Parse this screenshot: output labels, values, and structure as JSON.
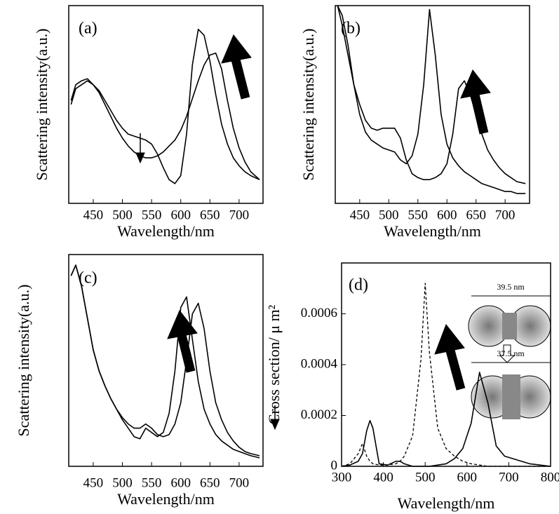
{
  "chart_data": [
    {
      "type": "line",
      "label": "(a)",
      "x_label": "Wavelength/nm",
      "y_label": "Scattering intensity(a.u.)",
      "x": [
        412,
        420,
        430,
        440,
        450,
        460,
        470,
        480,
        490,
        500,
        510,
        520,
        530,
        540,
        550,
        560,
        570,
        580,
        590,
        600,
        610,
        620,
        630,
        640,
        650,
        660,
        670,
        680,
        690,
        700,
        710,
        720,
        735
      ],
      "series": [
        {
          "color": "#000000",
          "style": "solid",
          "values": [
            0.5,
            0.58,
            0.6,
            0.62,
            0.6,
            0.57,
            0.52,
            0.47,
            0.42,
            0.38,
            0.35,
            0.34,
            0.33,
            0.32,
            0.3,
            0.25,
            0.18,
            0.12,
            0.1,
            0.14,
            0.35,
            0.7,
            0.88,
            0.85,
            0.72,
            0.55,
            0.4,
            0.3,
            0.23,
            0.19,
            0.16,
            0.14,
            0.12
          ]
        },
        {
          "color": "#000000",
          "style": "solid",
          "values": [
            0.52,
            0.6,
            0.62,
            0.63,
            0.6,
            0.56,
            0.5,
            0.44,
            0.38,
            0.33,
            0.29,
            0.26,
            0.24,
            0.23,
            0.23,
            0.24,
            0.26,
            0.29,
            0.32,
            0.37,
            0.44,
            0.53,
            0.62,
            0.7,
            0.75,
            0.76,
            0.68,
            0.52,
            0.38,
            0.28,
            0.21,
            0.16,
            0.12
          ]
        }
      ],
      "xlim": [
        408,
        741
      ],
      "xticks": [
        450,
        500,
        550,
        600,
        650,
        700
      ],
      "ylim": [
        0,
        1
      ]
    },
    {
      "type": "line",
      "label": "(b)",
      "x_label": "Wavelength/nm",
      "y_label": "Scattering intensity(a.u.)",
      "x": [
        412,
        420,
        430,
        440,
        450,
        460,
        470,
        480,
        490,
        500,
        510,
        520,
        530,
        540,
        550,
        560,
        570,
        580,
        590,
        600,
        610,
        620,
        630,
        640,
        650,
        660,
        670,
        680,
        690,
        700,
        710,
        720,
        735
      ],
      "series": [
        {
          "color": "#000000",
          "style": "solid",
          "values": [
            1.0,
            0.95,
            0.8,
            0.6,
            0.45,
            0.36,
            0.32,
            0.3,
            0.28,
            0.27,
            0.26,
            0.22,
            0.2,
            0.24,
            0.35,
            0.6,
            0.98,
            0.75,
            0.45,
            0.3,
            0.23,
            0.19,
            0.16,
            0.14,
            0.12,
            0.1,
            0.09,
            0.08,
            0.07,
            0.06,
            0.06,
            0.05,
            0.05
          ]
        },
        {
          "color": "#000000",
          "style": "solid",
          "values": [
            1.0,
            0.9,
            0.75,
            0.6,
            0.5,
            0.42,
            0.38,
            0.37,
            0.38,
            0.38,
            0.38,
            0.33,
            0.22,
            0.15,
            0.13,
            0.12,
            0.12,
            0.13,
            0.15,
            0.2,
            0.35,
            0.58,
            0.62,
            0.55,
            0.45,
            0.35,
            0.27,
            0.22,
            0.18,
            0.15,
            0.13,
            0.11,
            0.1
          ]
        }
      ],
      "xlim": [
        408,
        742
      ],
      "xticks": [
        450,
        500,
        550,
        600,
        650,
        700
      ],
      "ylim": [
        0,
        1
      ]
    },
    {
      "type": "line",
      "label": "(c)",
      "x_label": "Wavelength/nm",
      "y_label": "Scattering intensity(a.u.)",
      "x": [
        412,
        420,
        430,
        440,
        450,
        460,
        470,
        480,
        490,
        500,
        510,
        520,
        530,
        540,
        550,
        560,
        570,
        580,
        590,
        600,
        610,
        620,
        630,
        640,
        650,
        660,
        670,
        680,
        690,
        700,
        710,
        720,
        735
      ],
      "series": [
        {
          "color": "#000000",
          "style": "solid",
          "values": [
            0.9,
            0.95,
            0.85,
            0.7,
            0.55,
            0.45,
            0.38,
            0.32,
            0.27,
            0.22,
            0.18,
            0.14,
            0.13,
            0.18,
            0.16,
            0.14,
            0.16,
            0.25,
            0.45,
            0.75,
            0.8,
            0.6,
            0.4,
            0.27,
            0.2,
            0.15,
            0.12,
            0.1,
            0.08,
            0.07,
            0.06,
            0.05,
            0.04
          ]
        },
        {
          "color": "#000000",
          "style": "solid",
          "values": [
            0.9,
            0.95,
            0.85,
            0.7,
            0.55,
            0.45,
            0.38,
            0.32,
            0.27,
            0.23,
            0.2,
            0.18,
            0.18,
            0.2,
            0.18,
            0.15,
            0.14,
            0.15,
            0.2,
            0.3,
            0.5,
            0.72,
            0.77,
            0.65,
            0.45,
            0.3,
            0.22,
            0.16,
            0.12,
            0.09,
            0.07,
            0.06,
            0.05
          ]
        }
      ],
      "xlim": [
        408,
        741
      ],
      "xticks": [
        450,
        500,
        550,
        600,
        650,
        700
      ],
      "ylim": [
        0,
        1
      ]
    },
    {
      "type": "line",
      "label": "(d)",
      "x_label": "Wavelength/nm",
      "y_label": "Cross section/ μ m²",
      "annotations": [
        "39.5 nm",
        "37.5 nm"
      ],
      "x": [
        300,
        320,
        340,
        350,
        360,
        368,
        375,
        390,
        410,
        430,
        440,
        450,
        470,
        490,
        500,
        510,
        530,
        550,
        570,
        590,
        610,
        630,
        650,
        670,
        690,
        710,
        750,
        800
      ],
      "series": [
        {
          "color": "#000000",
          "style": "dashed",
          "values": [
            0,
            1e-05,
            5e-05,
            9e-05,
            4e-05,
            2e-05,
            1e-05,
            5e-06,
            5e-06,
            1e-05,
            2e-05,
            4e-05,
            0.00012,
            0.00042,
            0.00072,
            0.00045,
            0.00015,
            7e-05,
            4e-05,
            2e-05,
            1e-05,
            5e-06,
            0,
            0,
            0,
            0,
            0,
            0
          ]
        },
        {
          "color": "#000000",
          "style": "solid",
          "values": [
            0,
            5e-06,
            2e-05,
            5e-05,
            0.00014,
            0.00018,
            0.00015,
            1e-05,
            5e-06,
            2e-05,
            2e-05,
            1e-05,
            0,
            0,
            0,
            0,
            5e-06,
            1e-05,
            3e-05,
            7e-05,
            0.00017,
            0.00037,
            0.00025,
            8e-05,
            4e-05,
            3e-05,
            1e-05,
            0
          ]
        }
      ],
      "xlim": [
        300,
        800
      ],
      "xticks": [
        300,
        400,
        500,
        600,
        700,
        800
      ],
      "ylim": [
        0,
        0.0008
      ],
      "yticks": [
        0,
        0.0002,
        0.0004,
        0.0006
      ]
    }
  ]
}
